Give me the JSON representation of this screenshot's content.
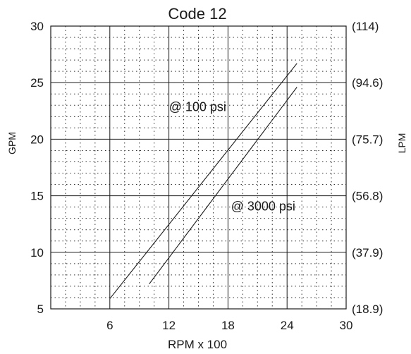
{
  "chart_data": {
    "type": "line",
    "title": "Code 12",
    "xlabel": "RPM x 100",
    "ylabel": "GPM",
    "y2label": "LPM",
    "xlim": [
      0,
      30
    ],
    "ylim": [
      5,
      30
    ],
    "x_ticks": [
      6,
      12,
      18,
      24,
      30
    ],
    "y_ticks": [
      5,
      10,
      15,
      20,
      25,
      30
    ],
    "y2_ticks": [
      "(18.9)",
      "(37.9)",
      "(56.8)",
      "(75.7)",
      "(94.6)",
      "(114)"
    ],
    "grid": true,
    "series": [
      {
        "name": "@ 100 psi",
        "x": [
          6,
          25
        ],
        "y": [
          5.9,
          26.7
        ]
      },
      {
        "name": "@ 3000 psi",
        "x": [
          10,
          25
        ],
        "y": [
          7.2,
          24.6
        ]
      }
    ],
    "annotations": [
      {
        "text": "@ 100 psi",
        "x": 12,
        "y": 22.5
      },
      {
        "text": "@ 3000 psi",
        "x": 18.3,
        "y": 13.7
      }
    ],
    "line_color": "#1a1a1a"
  }
}
